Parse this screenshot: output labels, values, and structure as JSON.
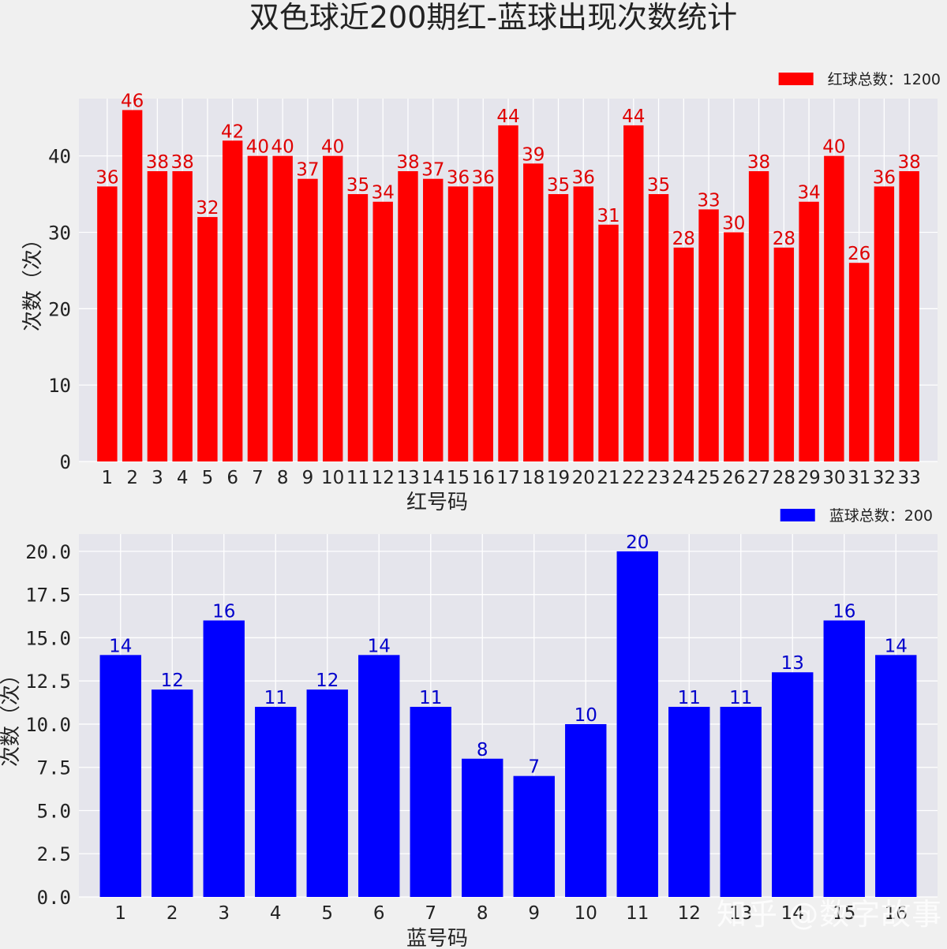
{
  "title": "双色球近200期红-蓝球出现次数统计",
  "watermark": "知乎 @数字故事",
  "chart_data": [
    {
      "type": "bar",
      "color": "#ff0000",
      "label_color": "#e00000",
      "legend": "红球总数：1200",
      "legend_position": "top-right",
      "xlabel": "红号码",
      "ylabel": "次数（次）",
      "ylim": [
        0,
        46
      ],
      "yticks": [
        "0",
        "10",
        "20",
        "30",
        "40"
      ],
      "ytick_values": [
        0,
        10,
        20,
        30,
        40
      ],
      "grid": true,
      "categories": [
        "1",
        "2",
        "3",
        "4",
        "5",
        "6",
        "7",
        "8",
        "9",
        "10",
        "11",
        "12",
        "13",
        "14",
        "15",
        "16",
        "17",
        "18",
        "19",
        "20",
        "21",
        "22",
        "23",
        "24",
        "25",
        "26",
        "27",
        "28",
        "29",
        "30",
        "31",
        "32",
        "33"
      ],
      "values": [
        36,
        46,
        38,
        38,
        32,
        42,
        40,
        40,
        37,
        40,
        35,
        34,
        38,
        37,
        36,
        36,
        44,
        39,
        35,
        36,
        31,
        44,
        35,
        28,
        33,
        30,
        38,
        28,
        34,
        40,
        26,
        36,
        38
      ]
    },
    {
      "type": "bar",
      "color": "#0000ff",
      "label_color": "#0000cc",
      "legend": "蓝球总数：200",
      "legend_position": "top-right",
      "xlabel": "蓝号码",
      "ylabel": "次数（次）",
      "ylim": [
        0,
        20
      ],
      "yticks": [
        "0.0",
        "2.5",
        "5.0",
        "7.5",
        "10.0",
        "12.5",
        "15.0",
        "17.5",
        "20.0"
      ],
      "ytick_values": [
        0,
        2.5,
        5,
        7.5,
        10,
        12.5,
        15,
        17.5,
        20
      ],
      "grid": true,
      "categories": [
        "1",
        "2",
        "3",
        "4",
        "5",
        "6",
        "7",
        "8",
        "9",
        "10",
        "11",
        "12",
        "13",
        "14",
        "15",
        "16"
      ],
      "values": [
        14,
        12,
        16,
        11,
        12,
        14,
        11,
        8,
        7,
        10,
        20,
        11,
        11,
        13,
        16,
        14
      ]
    }
  ]
}
